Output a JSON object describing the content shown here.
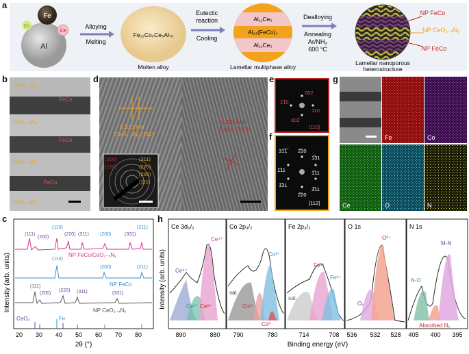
{
  "panel_a": {
    "label": "a",
    "elements": [
      "Fe",
      "Co",
      "Ce",
      "Al"
    ],
    "step1": {
      "line1": "Alloying",
      "line2": "Melting"
    },
    "molten_formula": "Fe₁₅Co₅Ce₅Al₇₅",
    "molten_caption": "Molten alloy",
    "step2": {
      "line1": "Eutectic",
      "line2": "reaction",
      "line3": "Cooling"
    },
    "lamellar_layers": [
      "Al₁₁Ce₃",
      "Al₁₃(FeCo)₄",
      "Al₁₁Ce₃"
    ],
    "lamellar_caption": "Lamellar multiphase alloy",
    "step3": {
      "line1": "Dealloying",
      "line2": "Annealing",
      "line3": "Ar/NH₃",
      "line4": "600 °C"
    },
    "np_feco_top": "NP FeCo",
    "np_ceo2": "NP CeO₂₋ₓNᵧ",
    "np_feco_bottom": "NP FeCo",
    "final_caption": "Lamellar nanoporous",
    "final_caption2": "heterostructure"
  },
  "panel_b": {
    "label": "b",
    "layers": [
      "CeO₂₋ₓNᵧ",
      "FeCo",
      "CeO₂₋ₓNᵧ",
      "FeCo",
      "CeO₂₋ₓNᵧ",
      "FeCo",
      "CeO₂₋ₓNᵧ"
    ]
  },
  "panel_d": {
    "label": "d",
    "ceo2_spacing": "0.313 nm",
    "ceo2_plane": "CeO₂₋ₓNᵧ (111)",
    "feco_spacing": "0.198 nm",
    "feco_plane": "FeCo (110)",
    "saed_left": [
      "(200)",
      "(110)"
    ],
    "saed_right": [
      "(311)",
      "(220)",
      "(200)",
      "(111)"
    ]
  },
  "panel_e": {
    "label": "e",
    "spots": [
      "002",
      "1̅1̅0",
      "110",
      "002̅"
    ],
    "zone": "[110]"
  },
  "panel_f": {
    "label": "f",
    "spots": [
      "31̅1̅",
      "2̅20",
      "1̅31",
      "1̅11",
      "1̅11",
      "1̅31",
      "2̅20",
      "3̅11"
    ],
    "zone": "[112]"
  },
  "panel_g": {
    "label": "g",
    "maps": [
      "Fe",
      "Co",
      "Ce",
      "O",
      "N"
    ]
  },
  "panel_c": {
    "label": "c",
    "ylabel": "Intensity (arb. units)",
    "xlabel": "2θ (°)",
    "x_ticks": [
      "20",
      "30",
      "40",
      "50",
      "60",
      "70",
      "80"
    ],
    "series_labels": [
      "NP FeCo/CeO₂₋ₓNᵧ",
      "NP FeCo",
      "NP CeO₂₋ₓNᵧ"
    ],
    "pink_peaks": [
      "(111)",
      "(200)",
      "(110)",
      "(220)",
      "(311)",
      "(200)",
      "(331)",
      "(211)"
    ],
    "blue_peaks": [
      "(110)",
      "(200)",
      "(211)"
    ],
    "gray_peaks": [
      "(111)",
      "(200)",
      "(220)",
      "(311)",
      "(331)"
    ],
    "refs": [
      "CeO₂",
      "Fe"
    ]
  },
  "panel_h": {
    "label": "h",
    "ylabel": "Intensity (arb. units)",
    "xlabel": "Binding energy (eV)",
    "subpanels": [
      {
        "title": "Ce 3d₅/₂",
        "ticks": [
          "890",
          "880"
        ],
        "labels": [
          "Ce⁴⁺",
          "Ce³⁺",
          "Ce³⁺",
          "Ce⁴⁺"
        ]
      },
      {
        "title": "Co 2p₃/₂",
        "ticks": [
          "790",
          "780"
        ],
        "labels": [
          "sat.",
          "Co²⁺",
          "Co³⁺",
          "Co⁰"
        ]
      },
      {
        "title": "Fe 2p₃/₂",
        "ticks": [
          "714",
          "708"
        ],
        "labels": [
          "sat.",
          "Fe³⁺",
          "Fe²⁺"
        ]
      },
      {
        "title": "O 1s",
        "ticks": [
          "536",
          "532",
          "528"
        ],
        "labels": [
          "Oᵥ",
          "O²⁻"
        ]
      },
      {
        "title": "N 1s",
        "ticks": [
          "405",
          "400",
          "395"
        ],
        "labels": [
          "N-O",
          "M-N",
          "Absorbed N₂"
        ]
      }
    ]
  },
  "colors": {
    "pink": "#d6338a",
    "blue": "#3a8fc8",
    "gray": "#555555",
    "purple": "#6a3d9a",
    "red": "#c62828",
    "orange": "#f2a21b"
  }
}
